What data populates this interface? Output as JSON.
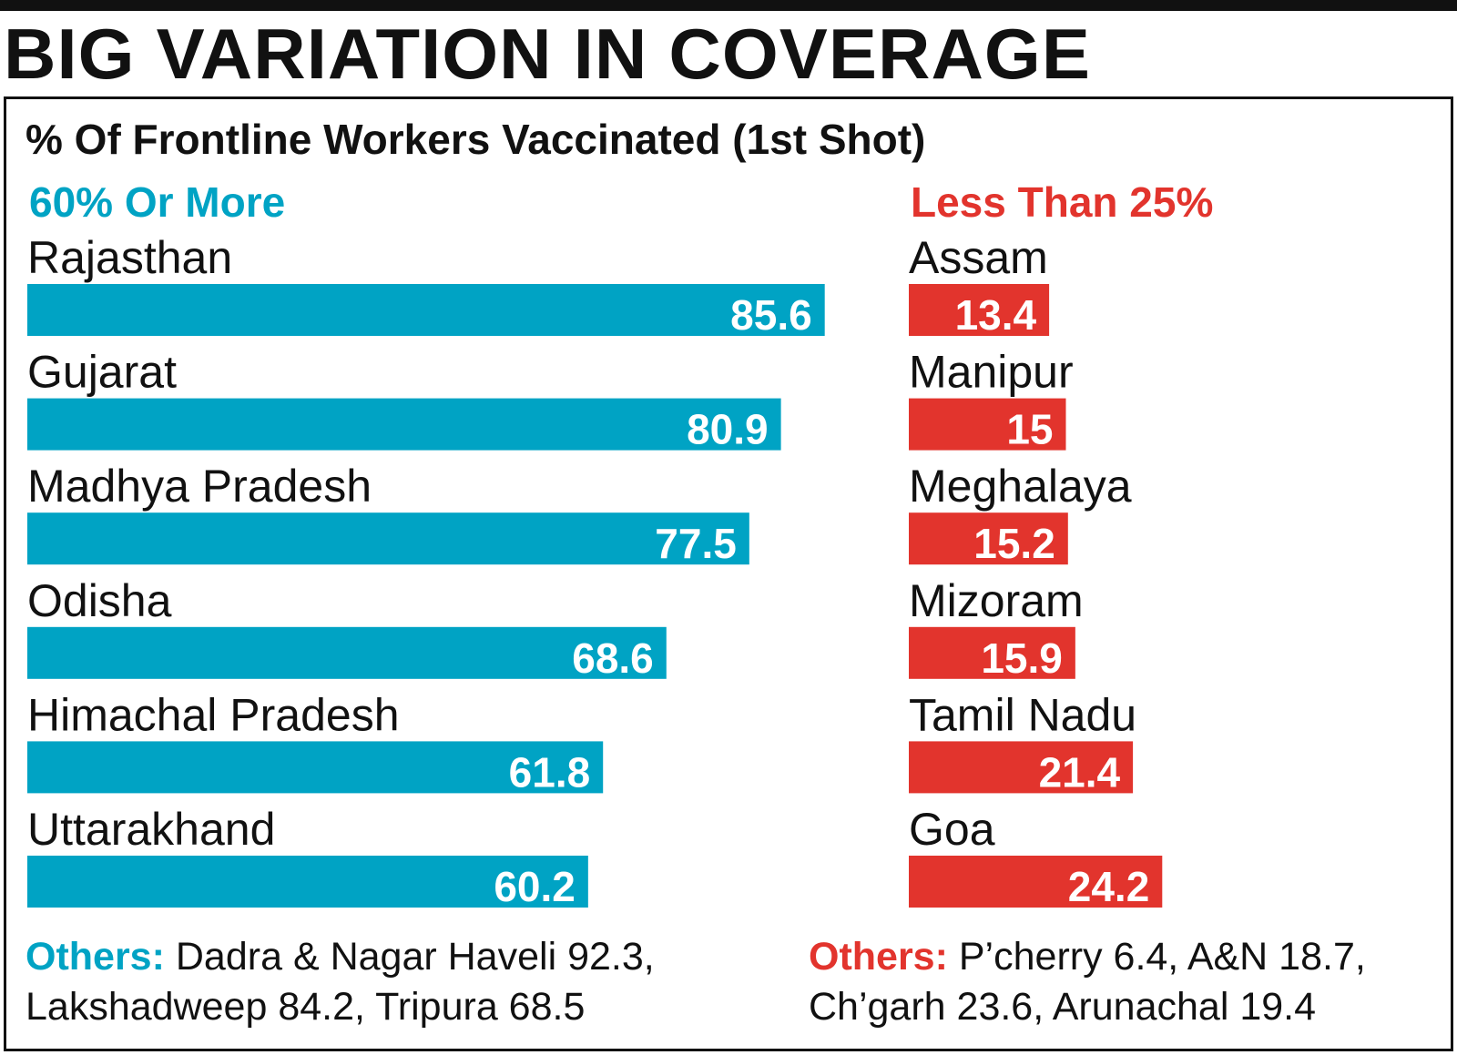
{
  "headline": "BIG VARIATION IN COVERAGE",
  "colors": {
    "high": "#00a3c4",
    "low": "#e2342d",
    "text": "#111111"
  },
  "chart_data": [
    {
      "type": "bar",
      "title": "% Of Frontline Workers Vaccinated (1st Shot)",
      "group_label": "60% Or More",
      "categories": [
        "Rajasthan",
        "Gujarat",
        "Madhya Pradesh",
        "Odisha",
        "Himachal Pradesh",
        "Uttarakhand"
      ],
      "values": [
        85.6,
        80.9,
        77.5,
        68.6,
        61.8,
        60.2
      ],
      "others_label": "Others:",
      "others_line1": "Dadra & Nagar Haveli 92.3,",
      "others_line2": "Lakshadweep 84.2, Tripura 68.5"
    },
    {
      "type": "bar",
      "title": "% Of Frontline Workers Vaccinated (1st Shot)",
      "group_label": "Less Than 25%",
      "categories": [
        "Assam",
        "Manipur",
        "Meghalaya",
        "Mizoram",
        "Tamil Nadu",
        "Goa"
      ],
      "values": [
        13.4,
        15,
        15.2,
        15.9,
        21.4,
        24.2
      ],
      "others_label": "Others:",
      "others_line1": "P’cherry 6.4, A&N 18.7,",
      "others_line2": "Ch’garh 23.6, Arunachal 19.4"
    }
  ]
}
